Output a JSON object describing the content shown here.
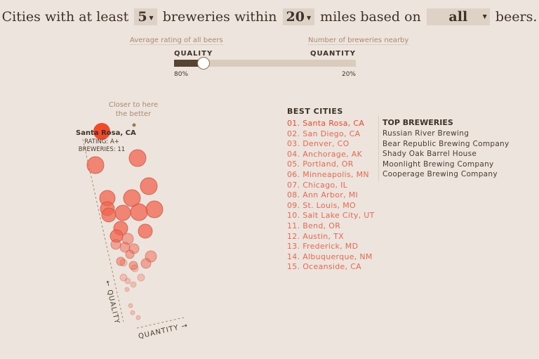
{
  "header": {
    "p1": "Cities with at least",
    "min_breweries": "5",
    "p2": "breweries within",
    "miles": "20",
    "p3": "miles based on",
    "beer_filter": "all",
    "p4": "beers."
  },
  "slider": {
    "left_desc": "Average rating of all beers",
    "right_desc": "Number of breweries nearby",
    "left_label": "QUALITY",
    "right_label": "QUANTITY",
    "quality_pct": 80,
    "left_value": "80%",
    "right_value": "20%"
  },
  "chart": {
    "note": "Closer to here the better",
    "highlight_city": "Santa Rosa, CA",
    "highlight_rating": "RATING: A+",
    "highlight_breweries": "BREWERIES: 11",
    "axis_quality": "← QUALITY",
    "axis_quantity": "QUANTITY →",
    "accent": "#f04a2a"
  },
  "best": {
    "title": "BEST CITIES",
    "cities": [
      "01. Santa Rosa, CA",
      "02. San Diego, CA",
      "03. Denver, CO",
      "04. Anchorage, AK",
      "05. Portland, OR",
      "06. Minneapolis, MN",
      "07. Chicago, IL",
      "08. Ann Arbor, MI",
      "09. St. Louis, MO",
      "10. Salt Lake City, UT",
      "11. Bend, OR",
      "12. Austin, TX",
      "13. Frederick, MD",
      "14. Albuquerque, NM",
      "15. Oceanside, CA"
    ]
  },
  "top": {
    "title": "TOP BREWERIES",
    "breweries": [
      "Russian River Brewing",
      "Bear Republic Brewing Company",
      "Shady Oak Barrel House",
      "Moonlight Brewing Company",
      "Cooperage Brewing Company"
    ]
  }
}
